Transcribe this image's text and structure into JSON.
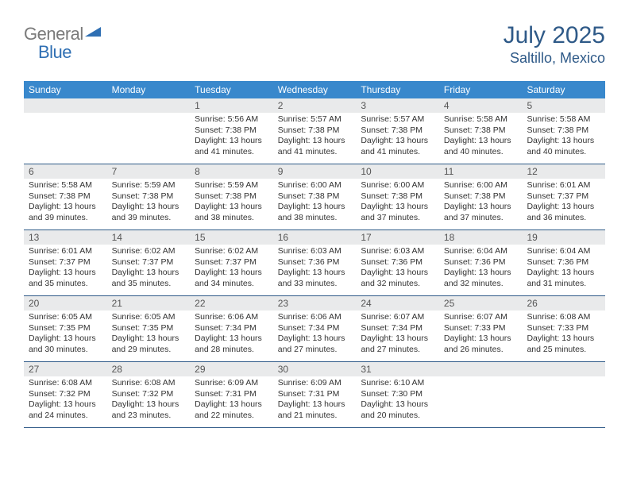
{
  "brand": {
    "part1": "General",
    "part2": "Blue",
    "color_gray": "#7a7a7a",
    "color_blue": "#2f6fb3",
    "tri_color": "#2f6fb3"
  },
  "title": "July 2025",
  "location": "Saltillo, Mexico",
  "colors": {
    "header_bg": "#3988cc",
    "header_text": "#ffffff",
    "daynum_bg": "#e9eaeb",
    "rule": "#2f5a88",
    "title_color": "#2f5a88",
    "page_bg": "#ffffff"
  },
  "font": {
    "family": "Arial",
    "body_size_pt": 10.5,
    "dow_size_pt": 12,
    "title_size_pt": 30,
    "location_size_pt": 18
  },
  "days_of_week": [
    "Sunday",
    "Monday",
    "Tuesday",
    "Wednesday",
    "Thursday",
    "Friday",
    "Saturday"
  ],
  "weeks": [
    [
      {
        "n": "",
        "sunrise": "",
        "sunset": "",
        "daylight": ""
      },
      {
        "n": "",
        "sunrise": "",
        "sunset": "",
        "daylight": ""
      },
      {
        "n": "1",
        "sunrise": "Sunrise: 5:56 AM",
        "sunset": "Sunset: 7:38 PM",
        "daylight": "Daylight: 13 hours and 41 minutes."
      },
      {
        "n": "2",
        "sunrise": "Sunrise: 5:57 AM",
        "sunset": "Sunset: 7:38 PM",
        "daylight": "Daylight: 13 hours and 41 minutes."
      },
      {
        "n": "3",
        "sunrise": "Sunrise: 5:57 AM",
        "sunset": "Sunset: 7:38 PM",
        "daylight": "Daylight: 13 hours and 41 minutes."
      },
      {
        "n": "4",
        "sunrise": "Sunrise: 5:58 AM",
        "sunset": "Sunset: 7:38 PM",
        "daylight": "Daylight: 13 hours and 40 minutes."
      },
      {
        "n": "5",
        "sunrise": "Sunrise: 5:58 AM",
        "sunset": "Sunset: 7:38 PM",
        "daylight": "Daylight: 13 hours and 40 minutes."
      }
    ],
    [
      {
        "n": "6",
        "sunrise": "Sunrise: 5:58 AM",
        "sunset": "Sunset: 7:38 PM",
        "daylight": "Daylight: 13 hours and 39 minutes."
      },
      {
        "n": "7",
        "sunrise": "Sunrise: 5:59 AM",
        "sunset": "Sunset: 7:38 PM",
        "daylight": "Daylight: 13 hours and 39 minutes."
      },
      {
        "n": "8",
        "sunrise": "Sunrise: 5:59 AM",
        "sunset": "Sunset: 7:38 PM",
        "daylight": "Daylight: 13 hours and 38 minutes."
      },
      {
        "n": "9",
        "sunrise": "Sunrise: 6:00 AM",
        "sunset": "Sunset: 7:38 PM",
        "daylight": "Daylight: 13 hours and 38 minutes."
      },
      {
        "n": "10",
        "sunrise": "Sunrise: 6:00 AM",
        "sunset": "Sunset: 7:38 PM",
        "daylight": "Daylight: 13 hours and 37 minutes."
      },
      {
        "n": "11",
        "sunrise": "Sunrise: 6:00 AM",
        "sunset": "Sunset: 7:38 PM",
        "daylight": "Daylight: 13 hours and 37 minutes."
      },
      {
        "n": "12",
        "sunrise": "Sunrise: 6:01 AM",
        "sunset": "Sunset: 7:37 PM",
        "daylight": "Daylight: 13 hours and 36 minutes."
      }
    ],
    [
      {
        "n": "13",
        "sunrise": "Sunrise: 6:01 AM",
        "sunset": "Sunset: 7:37 PM",
        "daylight": "Daylight: 13 hours and 35 minutes."
      },
      {
        "n": "14",
        "sunrise": "Sunrise: 6:02 AM",
        "sunset": "Sunset: 7:37 PM",
        "daylight": "Daylight: 13 hours and 35 minutes."
      },
      {
        "n": "15",
        "sunrise": "Sunrise: 6:02 AM",
        "sunset": "Sunset: 7:37 PM",
        "daylight": "Daylight: 13 hours and 34 minutes."
      },
      {
        "n": "16",
        "sunrise": "Sunrise: 6:03 AM",
        "sunset": "Sunset: 7:36 PM",
        "daylight": "Daylight: 13 hours and 33 minutes."
      },
      {
        "n": "17",
        "sunrise": "Sunrise: 6:03 AM",
        "sunset": "Sunset: 7:36 PM",
        "daylight": "Daylight: 13 hours and 32 minutes."
      },
      {
        "n": "18",
        "sunrise": "Sunrise: 6:04 AM",
        "sunset": "Sunset: 7:36 PM",
        "daylight": "Daylight: 13 hours and 32 minutes."
      },
      {
        "n": "19",
        "sunrise": "Sunrise: 6:04 AM",
        "sunset": "Sunset: 7:36 PM",
        "daylight": "Daylight: 13 hours and 31 minutes."
      }
    ],
    [
      {
        "n": "20",
        "sunrise": "Sunrise: 6:05 AM",
        "sunset": "Sunset: 7:35 PM",
        "daylight": "Daylight: 13 hours and 30 minutes."
      },
      {
        "n": "21",
        "sunrise": "Sunrise: 6:05 AM",
        "sunset": "Sunset: 7:35 PM",
        "daylight": "Daylight: 13 hours and 29 minutes."
      },
      {
        "n": "22",
        "sunrise": "Sunrise: 6:06 AM",
        "sunset": "Sunset: 7:34 PM",
        "daylight": "Daylight: 13 hours and 28 minutes."
      },
      {
        "n": "23",
        "sunrise": "Sunrise: 6:06 AM",
        "sunset": "Sunset: 7:34 PM",
        "daylight": "Daylight: 13 hours and 27 minutes."
      },
      {
        "n": "24",
        "sunrise": "Sunrise: 6:07 AM",
        "sunset": "Sunset: 7:34 PM",
        "daylight": "Daylight: 13 hours and 27 minutes."
      },
      {
        "n": "25",
        "sunrise": "Sunrise: 6:07 AM",
        "sunset": "Sunset: 7:33 PM",
        "daylight": "Daylight: 13 hours and 26 minutes."
      },
      {
        "n": "26",
        "sunrise": "Sunrise: 6:08 AM",
        "sunset": "Sunset: 7:33 PM",
        "daylight": "Daylight: 13 hours and 25 minutes."
      }
    ],
    [
      {
        "n": "27",
        "sunrise": "Sunrise: 6:08 AM",
        "sunset": "Sunset: 7:32 PM",
        "daylight": "Daylight: 13 hours and 24 minutes."
      },
      {
        "n": "28",
        "sunrise": "Sunrise: 6:08 AM",
        "sunset": "Sunset: 7:32 PM",
        "daylight": "Daylight: 13 hours and 23 minutes."
      },
      {
        "n": "29",
        "sunrise": "Sunrise: 6:09 AM",
        "sunset": "Sunset: 7:31 PM",
        "daylight": "Daylight: 13 hours and 22 minutes."
      },
      {
        "n": "30",
        "sunrise": "Sunrise: 6:09 AM",
        "sunset": "Sunset: 7:31 PM",
        "daylight": "Daylight: 13 hours and 21 minutes."
      },
      {
        "n": "31",
        "sunrise": "Sunrise: 6:10 AM",
        "sunset": "Sunset: 7:30 PM",
        "daylight": "Daylight: 13 hours and 20 minutes."
      },
      {
        "n": "",
        "sunrise": "",
        "sunset": "",
        "daylight": ""
      },
      {
        "n": "",
        "sunrise": "",
        "sunset": "",
        "daylight": ""
      }
    ]
  ]
}
